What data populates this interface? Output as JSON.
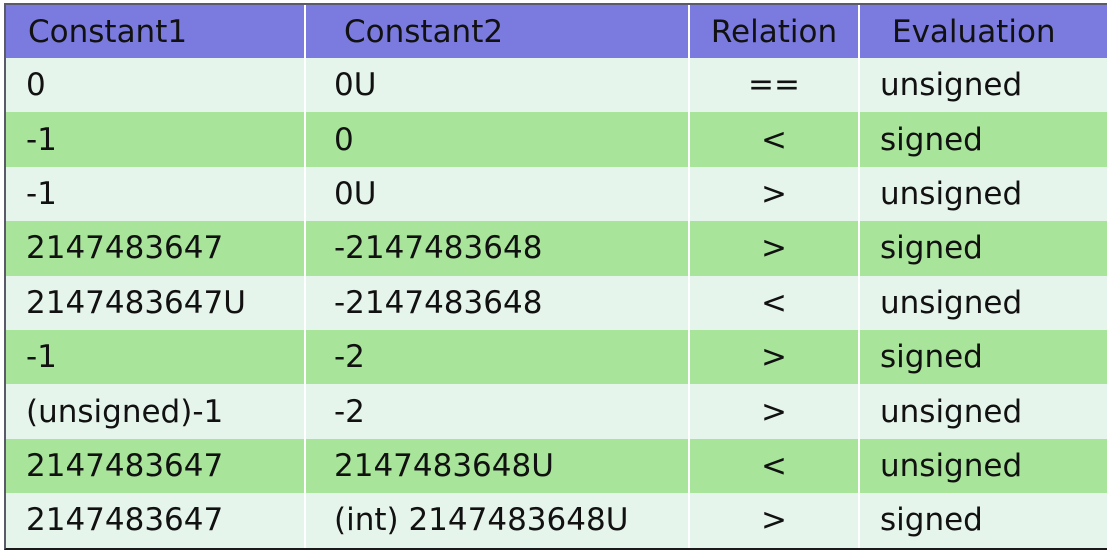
{
  "table": {
    "headers": [
      "Constant1",
      "Constant2",
      "Relation",
      "Evaluation"
    ],
    "rows": [
      [
        "0",
        "0U",
        "==",
        "unsigned"
      ],
      [
        "-1",
        "0",
        "<",
        "signed"
      ],
      [
        "-1",
        "0U",
        ">",
        "unsigned"
      ],
      [
        "2147483647",
        "-2147483648",
        ">",
        "signed"
      ],
      [
        "2147483647U",
        "-2147483648",
        "<",
        "unsigned"
      ],
      [
        "-1",
        "-2",
        ">",
        "signed"
      ],
      [
        "(unsigned)-1",
        "-2",
        ">",
        "unsigned"
      ],
      [
        "2147483647",
        "2147483648U",
        "<",
        "unsigned"
      ],
      [
        "2147483647",
        "(int) 2147483648U",
        ">",
        "signed"
      ]
    ]
  },
  "colors": {
    "header_bg": "#7b7bdf",
    "row_light": "#e6f5ec",
    "row_green": "#a8e59a"
  }
}
